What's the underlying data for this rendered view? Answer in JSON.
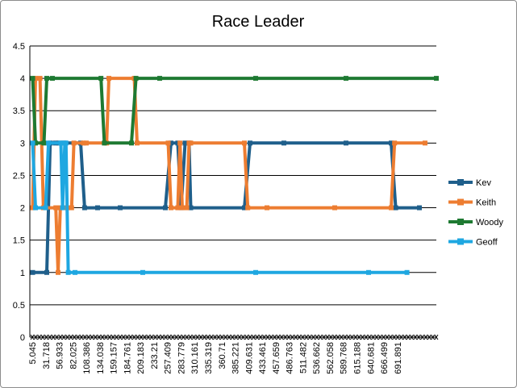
{
  "chart_data": {
    "type": "line",
    "title": "Race Leader",
    "xlabel": "",
    "ylabel": "",
    "ylim": [
      0,
      4.5
    ],
    "yticks": [
      0,
      0.5,
      1,
      1.5,
      2,
      2.5,
      3,
      3.5,
      4,
      4.5
    ],
    "xlim": [
      0,
      720
    ],
    "x_tick_labels": [
      "5.045",
      "31.718",
      "56.933",
      "82.025",
      "108.386",
      "134.038",
      "159.157",
      "184.761",
      "209.183",
      "233.21",
      "257.409",
      "283.779",
      "310.161",
      "335.319",
      "360.71",
      "385.221",
      "409.631",
      "433.461",
      "457.659",
      "486.763",
      "511.482",
      "536.662",
      "562.058",
      "589.768",
      "615.188",
      "640.681",
      "666.499",
      "691.891"
    ],
    "grid": true,
    "legend_position": "right",
    "series": [
      {
        "name": "Kev",
        "color": "#1f5f8b",
        "points": [
          [
            5.045,
            1
          ],
          [
            30,
            1
          ],
          [
            36,
            3
          ],
          [
            45,
            3
          ],
          [
            52,
            3
          ],
          [
            60,
            3
          ],
          [
            90,
            3
          ],
          [
            97,
            2
          ],
          [
            120,
            2
          ],
          [
            160,
            2
          ],
          [
            240,
            2
          ],
          [
            250,
            3
          ],
          [
            262,
            3
          ],
          [
            268,
            2
          ],
          [
            275,
            3
          ],
          [
            282,
            3
          ],
          [
            285,
            2
          ],
          [
            380,
            2
          ],
          [
            390,
            3
          ],
          [
            450,
            3
          ],
          [
            560,
            3
          ],
          [
            640,
            3
          ],
          [
            648,
            2
          ],
          [
            690,
            2
          ]
        ]
      },
      {
        "name": "Keith",
        "color": "#ed7d31",
        "points": [
          [
            5.045,
            2
          ],
          [
            10,
            4
          ],
          [
            18,
            4
          ],
          [
            24,
            2
          ],
          [
            46,
            2
          ],
          [
            50,
            1
          ],
          [
            54,
            2
          ],
          [
            66,
            2
          ],
          [
            74,
            2
          ],
          [
            78,
            3
          ],
          [
            95,
            3
          ],
          [
            100,
            3
          ],
          [
            136,
            3
          ],
          [
            140,
            4
          ],
          [
            185,
            4
          ],
          [
            190,
            3
          ],
          [
            245,
            3
          ],
          [
            250,
            2
          ],
          [
            262,
            2
          ],
          [
            266,
            3
          ],
          [
            270,
            2
          ],
          [
            278,
            2
          ],
          [
            282,
            3
          ],
          [
            285,
            3
          ],
          [
            380,
            3
          ],
          [
            386,
            2
          ],
          [
            420,
            2
          ],
          [
            540,
            2
          ],
          [
            640,
            2
          ],
          [
            646,
            3
          ],
          [
            700,
            3
          ]
        ]
      },
      {
        "name": "Woody",
        "color": "#1e7a32",
        "points": [
          [
            5.045,
            4
          ],
          [
            10,
            3
          ],
          [
            25,
            3
          ],
          [
            30,
            4
          ],
          [
            40,
            4
          ],
          [
            126,
            4
          ],
          [
            132,
            3
          ],
          [
            180,
            3
          ],
          [
            188,
            4
          ],
          [
            230,
            4
          ],
          [
            400,
            4
          ],
          [
            560,
            4
          ],
          [
            720,
            4
          ]
        ]
      },
      {
        "name": "Geoff",
        "color": "#1ea7e1",
        "points": [
          [
            5.045,
            3
          ],
          [
            10,
            2
          ],
          [
            28,
            2
          ],
          [
            33,
            3
          ],
          [
            55,
            3
          ],
          [
            58,
            2
          ],
          [
            62,
            3
          ],
          [
            64,
            3
          ],
          [
            68,
            1
          ],
          [
            80,
            1
          ],
          [
            200,
            1
          ],
          [
            400,
            1
          ],
          [
            600,
            1
          ],
          [
            668,
            1
          ]
        ]
      }
    ]
  }
}
